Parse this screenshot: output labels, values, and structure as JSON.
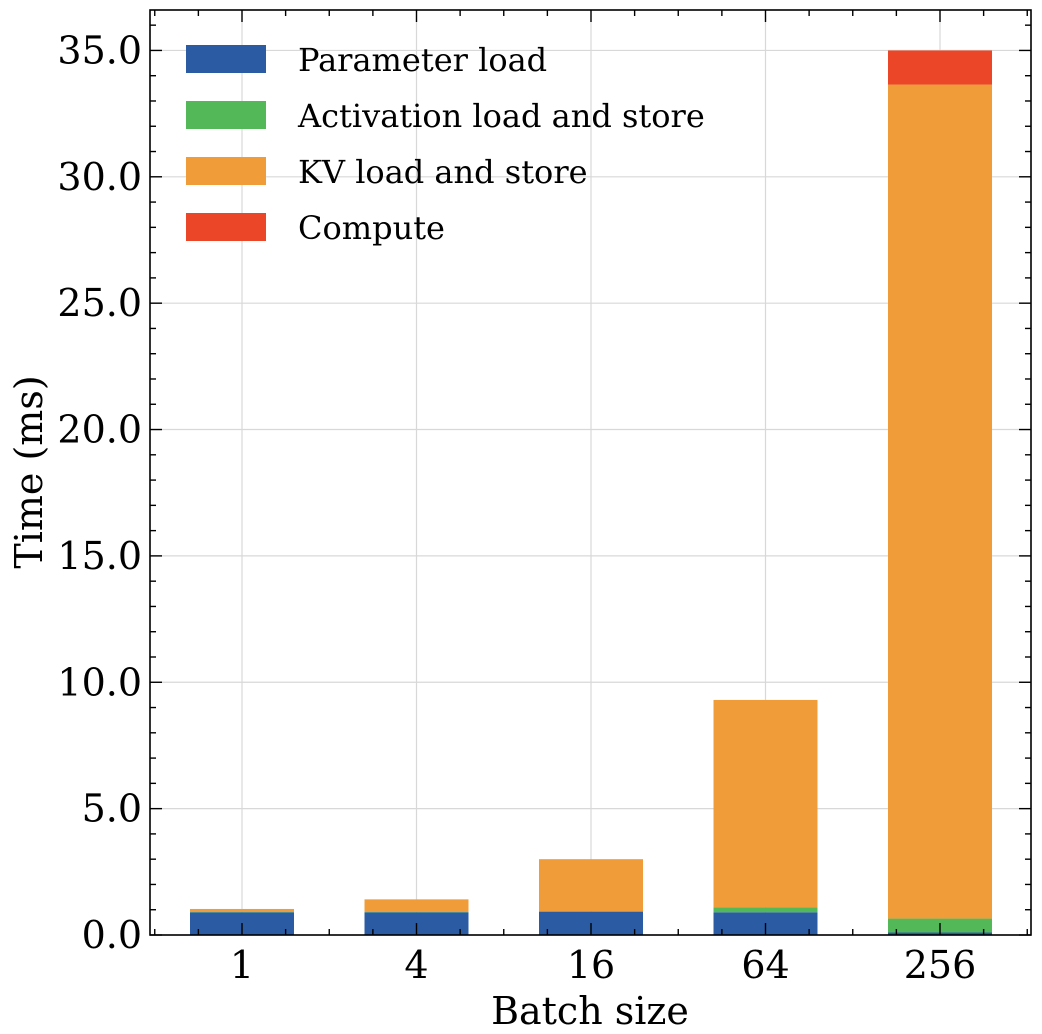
{
  "chart_data": {
    "type": "bar",
    "stacked": true,
    "categories": [
      "1",
      "4",
      "16",
      "64",
      "256"
    ],
    "series": [
      {
        "name": "Parameter load",
        "color": "#2b5ca3",
        "values": [
          0.9,
          0.9,
          0.92,
          0.9,
          0.1
        ]
      },
      {
        "name": "Activation load and store",
        "color": "#52b858",
        "values": [
          0.01,
          0.01,
          0.03,
          0.2,
          0.55
        ]
      },
      {
        "name": "KV load and store",
        "color": "#f09c38",
        "values": [
          0.12,
          0.5,
          2.05,
          8.2,
          33.0
        ]
      },
      {
        "name": "Compute",
        "color": "#eb4627",
        "values": [
          0.0,
          0.0,
          0.0,
          0.0,
          1.35
        ]
      }
    ],
    "xlabel": "Batch size",
    "ylabel": "Time (ms)",
    "ylim": [
      0,
      36.6
    ],
    "yticks": [
      "0.0",
      "5.0",
      "10.0",
      "15.0",
      "20.0",
      "25.0",
      "30.0",
      "35.0"
    ],
    "ytick_values": [
      0,
      5,
      10,
      15,
      20,
      25,
      30,
      35
    ],
    "grid": true,
    "legend_position": "top-left"
  }
}
